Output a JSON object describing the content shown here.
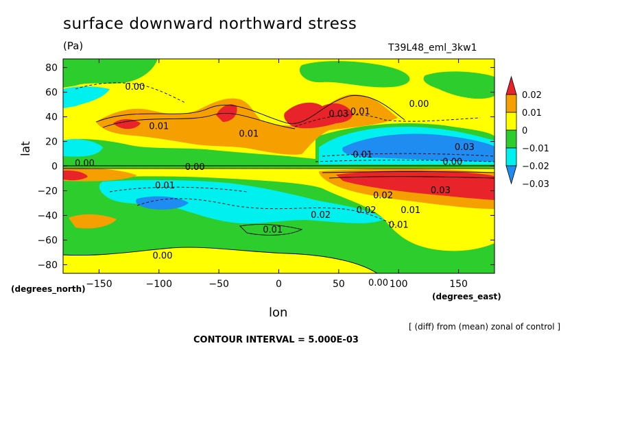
{
  "title": "surface downward northward stress",
  "units": "(Pa)",
  "run_id": "T39L48_eml_3kw1",
  "colors": {
    "red": "#e8232a",
    "orange": "#f5a000",
    "yellow": "#ffff00",
    "green": "#2ecd2e",
    "cyan": "#00f0f0",
    "blue": "#1e8cf0"
  },
  "chart_data": {
    "type": "heatmap",
    "title": "surface downward northward stress",
    "subtitle": "(Pa)",
    "xlabel": "lon",
    "ylabel": "lat",
    "x_units": "(degrees_east)",
    "y_units": "(degrees_north)",
    "xlim": [
      -180,
      180
    ],
    "ylim": [
      -87,
      87
    ],
    "x_ticks": [
      -150,
      -100,
      -50,
      0,
      50,
      100,
      150
    ],
    "y_ticks": [
      80,
      60,
      40,
      20,
      0,
      -20,
      -40,
      -60,
      -80
    ],
    "x_tick_labels": [
      "−150",
      "−100",
      "−50",
      "0",
      "50",
      "100",
      "150"
    ],
    "y_tick_labels": [
      "80",
      "60",
      "40",
      "20",
      "0",
      "−20",
      "−40",
      "−60",
      "−80"
    ],
    "colorbar": {
      "levels": [
        0.02,
        0.01,
        0,
        -0.01,
        -0.02,
        -0.03
      ],
      "labels": [
        "0.02",
        "0.01",
        "0",
        "−0.01",
        "−0.02",
        "−0.03"
      ],
      "colors": [
        "#e8232a",
        "#f5a000",
        "#ffff00",
        "#2ecd2e",
        "#00f0f0",
        "#1e8cf0"
      ]
    },
    "contour_interval": "5.000E-03",
    "contour_labels": [
      {
        "text": "0.00",
        "lon": -120,
        "lat": 62
      },
      {
        "text": "0.01",
        "lon": -100,
        "lat": 30
      },
      {
        "text": "0.01",
        "lon": -25,
        "lat": 24
      },
      {
        "text": "0.03",
        "lon": 50,
        "lat": 40
      },
      {
        "text": "0.01",
        "lon": 68,
        "lat": 42
      },
      {
        "text": "0.00",
        "lon": 117,
        "lat": 48
      },
      {
        "text": "0.03",
        "lon": 155,
        "lat": 13
      },
      {
        "text": "0.01",
        "lon": 70,
        "lat": 7
      },
      {
        "text": "0.00",
        "lon": 145,
        "lat": 1
      },
      {
        "text": "0.00",
        "lon": -162,
        "lat": 0
      },
      {
        "text": "0.00",
        "lon": -70,
        "lat": -3
      },
      {
        "text": "0.01",
        "lon": -95,
        "lat": -18
      },
      {
        "text": "0.03",
        "lon": 135,
        "lat": -22
      },
      {
        "text": "0.02",
        "lon": 87,
        "lat": -26
      },
      {
        "text": "0.02",
        "lon": 35,
        "lat": -42
      },
      {
        "text": "0.02",
        "lon": 73,
        "lat": -38
      },
      {
        "text": "0.01",
        "lon": 110,
        "lat": -38
      },
      {
        "text": "0.01",
        "lon": 100,
        "lat": -50
      },
      {
        "text": "0.01",
        "lon": -5,
        "lat": -54
      },
      {
        "text": "0.00",
        "lon": -97,
        "lat": -75
      },
      {
        "text": "0.00",
        "lon": 83,
        "lat": -97
      }
    ]
  },
  "footer": {
    "note": "[ (diff) from (mean) zonal of control ]",
    "interval": "CONTOUR INTERVAL = 5.000E-03"
  }
}
